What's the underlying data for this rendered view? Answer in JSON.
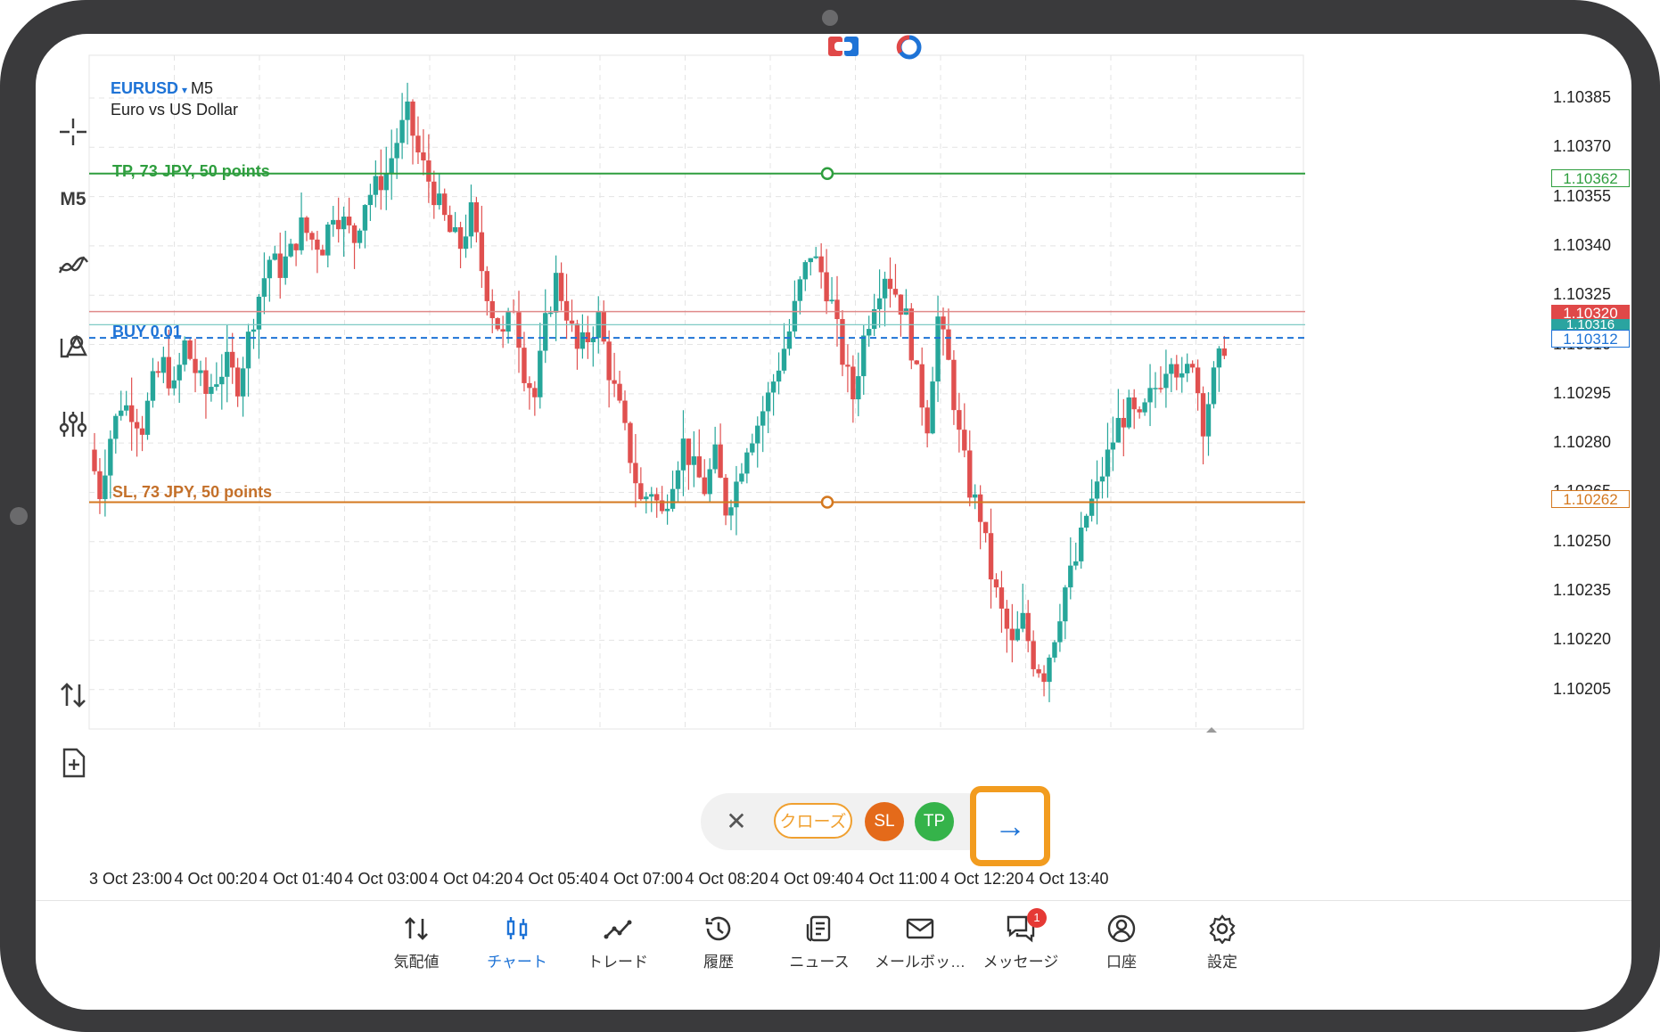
{
  "chart_header": {
    "symbol": "EURUSD",
    "dropdown_glyph": "▾",
    "timeframe": "M5",
    "description": "Euro vs US Dollar"
  },
  "left_toolbar": {
    "timeframe_label": "M5",
    "icons": [
      "crosshair-icon",
      "indicators-icon",
      "objects-icon",
      "settings-sliders-icon",
      "swap-arrows-icon",
      "new-order-icon"
    ]
  },
  "price_axis": [
    "1.10385",
    "1.10370",
    "1.10355",
    "1.10340",
    "1.10325",
    "1.10310",
    "1.10295",
    "1.10280",
    "1.10265",
    "1.10250",
    "1.10235",
    "1.10220",
    "1.10205"
  ],
  "time_axis": [
    "3 Oct 23:00",
    "4 Oct 00:20",
    "4 Oct 01:40",
    "4 Oct 03:00",
    "4 Oct 04:20",
    "4 Oct 05:40",
    "4 Oct 07:00",
    "4 Oct 08:20",
    "4 Oct 09:40",
    "4 Oct 11:00",
    "4 Oct 12:20",
    "4 Oct 13:40"
  ],
  "levels": {
    "tp_label": "TP, 73 JPY, 50 points",
    "tp_price": "1.10362",
    "sl_label": "SL, 73 JPY, 50 points",
    "sl_price": "1.10262",
    "buy_label": "BUY 0.01",
    "buy_price": "1.10312",
    "ask_price": "1.10320",
    "bid_price": "1.10316"
  },
  "trade_panel": {
    "close_glyph": "✕",
    "close_position_label": "クローズ",
    "sl_label": "SL",
    "tp_label": "TP",
    "arrow_glyph": "→"
  },
  "bottom_nav": [
    {
      "label": "気配値",
      "icon": "quotes-icon"
    },
    {
      "label": "チャート",
      "icon": "chart-icon",
      "active": true
    },
    {
      "label": "トレード",
      "icon": "trade-icon"
    },
    {
      "label": "履歴",
      "icon": "history-icon"
    },
    {
      "label": "ニュース",
      "icon": "news-icon"
    },
    {
      "label": "メールボッ…",
      "icon": "mailbox-icon"
    },
    {
      "label": "メッセージ",
      "icon": "messages-icon",
      "badge": "1"
    },
    {
      "label": "口座",
      "icon": "account-icon"
    },
    {
      "label": "設定",
      "icon": "settings-icon"
    }
  ],
  "colors": {
    "bull": "#26a69a",
    "bear": "#e0504f",
    "tp": "#2e9e3e",
    "sl": "#d4781f",
    "buy": "#1e73d6",
    "ask_tag": "#e04848",
    "bid_tag": "#2aa4a0",
    "highlight": "#f29c1f"
  },
  "chart_data": {
    "type": "candlestick",
    "symbol": "EURUSD",
    "timeframe": "M5",
    "ylim": [
      1.10193,
      1.10398
    ],
    "y_ticks": [
      1.10385,
      1.1037,
      1.10355,
      1.1034,
      1.10325,
      1.1031,
      1.10295,
      1.1028,
      1.10265,
      1.1025,
      1.10235,
      1.1022,
      1.10205
    ],
    "x_ticks": [
      "3 Oct 23:00",
      "4 Oct 00:20",
      "4 Oct 01:40",
      "4 Oct 03:00",
      "4 Oct 04:20",
      "4 Oct 05:40",
      "4 Oct 07:00",
      "4 Oct 08:20",
      "4 Oct 09:40",
      "4 Oct 11:00",
      "4 Oct 12:20",
      "4 Oct 13:40"
    ],
    "close_path": [
      1.10278,
      1.10265,
      1.10282,
      1.10292,
      1.1029,
      1.10285,
      1.10298,
      1.10304,
      1.10296,
      1.1031,
      1.10302,
      1.10295,
      1.103,
      1.10304,
      1.10298,
      1.10312,
      1.10325,
      1.10336,
      1.10333,
      1.10338,
      1.10346,
      1.10342,
      1.1034,
      1.10351,
      1.10347,
      1.10342,
      1.10354,
      1.10358,
      1.10362,
      1.10372,
      1.1038,
      1.10368,
      1.1036,
      1.10352,
      1.10344,
      1.1034,
      1.1035,
      1.10333,
      1.1032,
      1.10312,
      1.10322,
      1.10302,
      1.10294,
      1.10316,
      1.1033,
      1.1032,
      1.10308,
      1.10312,
      1.10318,
      1.10302,
      1.1029,
      1.10276,
      1.10262,
      1.10266,
      1.10258,
      1.1027,
      1.1028,
      1.10272,
      1.10266,
      1.10276,
      1.1026,
      1.10268,
      1.1028,
      1.10286,
      1.10294,
      1.10304,
      1.10314,
      1.10328,
      1.10338,
      1.10332,
      1.10322,
      1.10306,
      1.10294,
      1.10312,
      1.10324,
      1.10332,
      1.10326,
      1.10318,
      1.103,
      1.10286,
      1.10318,
      1.10304,
      1.10282,
      1.10266,
      1.10258,
      1.1024,
      1.10228,
      1.10218,
      1.10226,
      1.10214,
      1.1021,
      1.10222,
      1.10236,
      1.10244,
      1.10258,
      1.10266,
      1.10276,
      1.10286,
      1.1029,
      1.10286,
      1.10294,
      1.103,
      1.10308,
      1.10298,
      1.10306,
      1.10286,
      1.103,
      1.1031
    ]
  }
}
